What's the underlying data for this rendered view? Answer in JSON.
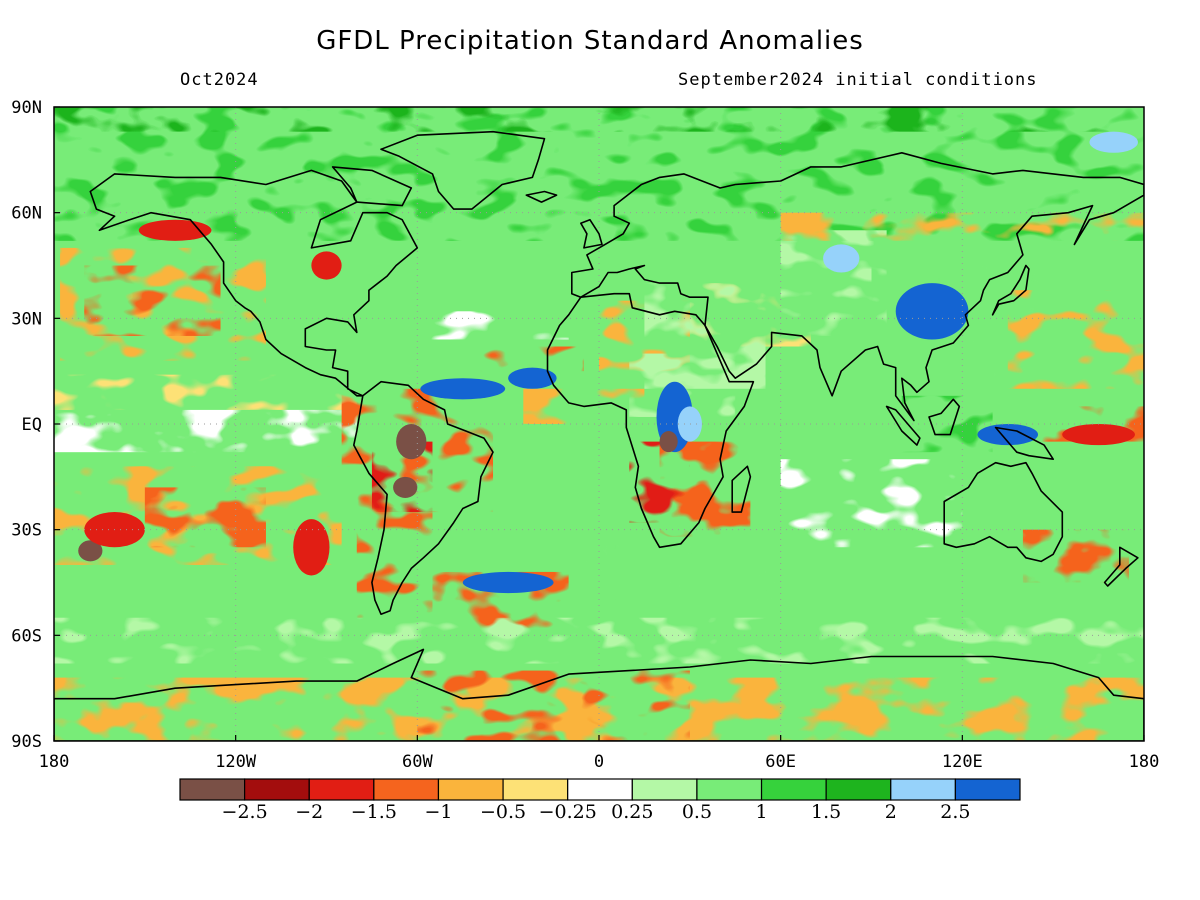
{
  "title": "GFDL Precipitation Standard Anomalies",
  "subtitle_left": "Oct2024",
  "subtitle_right": "September2024 initial conditions",
  "map": {
    "lon_ticks": [
      {
        "lon": -180,
        "label": "180"
      },
      {
        "lon": -120,
        "label": "120W"
      },
      {
        "lon": -60,
        "label": "60W"
      },
      {
        "lon": 0,
        "label": "0"
      },
      {
        "lon": 60,
        "label": "60E"
      },
      {
        "lon": 120,
        "label": "120E"
      },
      {
        "lon": 180,
        "label": "180"
      }
    ],
    "lat_ticks": [
      {
        "lat": 90,
        "label": "90N"
      },
      {
        "lat": 60,
        "label": "60N"
      },
      {
        "lat": 30,
        "label": "30N"
      },
      {
        "lat": 0,
        "label": "EQ"
      },
      {
        "lat": -30,
        "label": "30S"
      },
      {
        "lat": -60,
        "label": "60S"
      },
      {
        "lat": -90,
        "label": "90S"
      }
    ],
    "colors": {
      "coast": "#000000",
      "grid": "#9a9a9a"
    }
  },
  "colorbar": {
    "colors": [
      "#7a5046",
      "#a30d0d",
      "#e11e14",
      "#f5641e",
      "#fab43c",
      "#fde176",
      "#ffffff",
      "#b4f8a6",
      "#78ec78",
      "#36d23c",
      "#1eb41e",
      "#96d2fa",
      "#1464d2"
    ],
    "labels": [
      "−2.5",
      "−2",
      "−1.5",
      "−1",
      "−0.5",
      "−0.25",
      "0.25",
      "0.5",
      "1",
      "1.5",
      "2",
      "2.5"
    ]
  }
}
